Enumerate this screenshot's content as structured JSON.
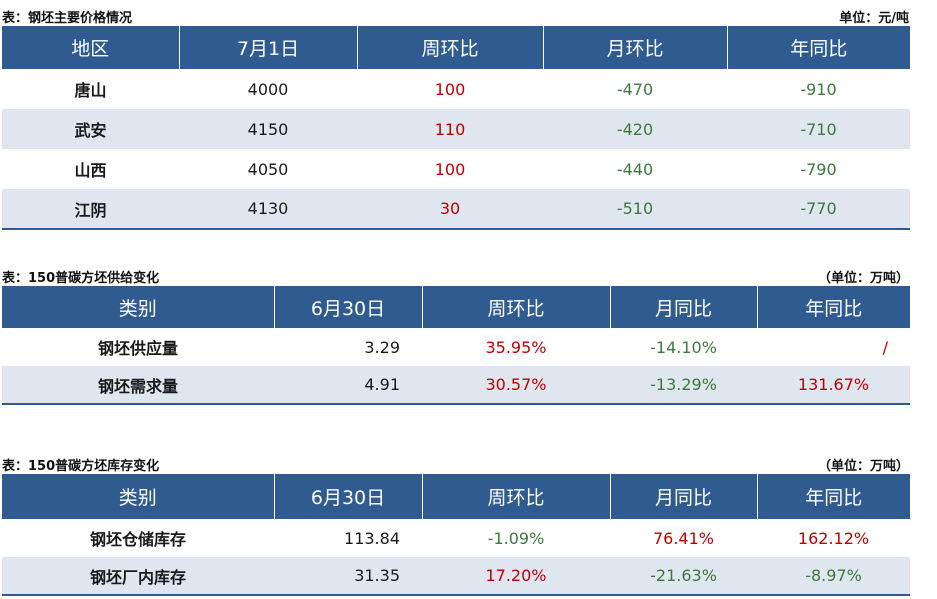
{
  "table1": {
    "caption": "表：钢坯主要价格情况",
    "unit": "单位：元/吨",
    "headers": [
      "地区",
      "7月1日",
      "周环比",
      "月环比",
      "年同比"
    ],
    "rows": [
      {
        "label": "唐山",
        "value": "4000",
        "wow": "100",
        "mom": "-470",
        "yoy": "-910"
      },
      {
        "label": "武安",
        "value": "4150",
        "wow": "110",
        "mom": "-420",
        "yoy": "-710"
      },
      {
        "label": "山西",
        "value": "4050",
        "wow": "100",
        "mom": "-440",
        "yoy": "-790"
      },
      {
        "label": "江阴",
        "value": "4130",
        "wow": "30",
        "mom": "-510",
        "yoy": "-770"
      }
    ]
  },
  "table2": {
    "caption": "表：150普碳方坯供给变化",
    "unit": "（单位：万吨）",
    "headers": [
      "类别",
      "6月30日",
      "周环比",
      "月同比",
      "年同比"
    ],
    "rows": [
      {
        "label": "钢坯供应量",
        "value": "3.29",
        "wow": "35.95%",
        "mom": "-14.10%",
        "yoy": "/"
      },
      {
        "label": "钢坯需求量",
        "value": "4.91",
        "wow": "30.57%",
        "mom": "-13.29%",
        "yoy": "131.67%"
      }
    ]
  },
  "table3": {
    "caption": "表：150普碳方坯库存变化",
    "unit": "（单位：万吨）",
    "headers": [
      "类别",
      "6月30日",
      "周环比",
      "月同比",
      "年同比"
    ],
    "rows": [
      {
        "label": "钢坯仓储库存",
        "value": "113.84",
        "wow": "-1.09%",
        "mom": "76.41%",
        "yoy": "162.12%"
      },
      {
        "label": "钢坯厂内库存",
        "value": "31.35",
        "wow": "17.20%",
        "mom": "-21.63%",
        "yoy": "-8.97%"
      }
    ]
  },
  "colors": {
    "header_bg": "#2f5b91",
    "stripe_bg": "#dfe6f0",
    "positive": "#c00000",
    "negative": "#3c7a3c"
  }
}
